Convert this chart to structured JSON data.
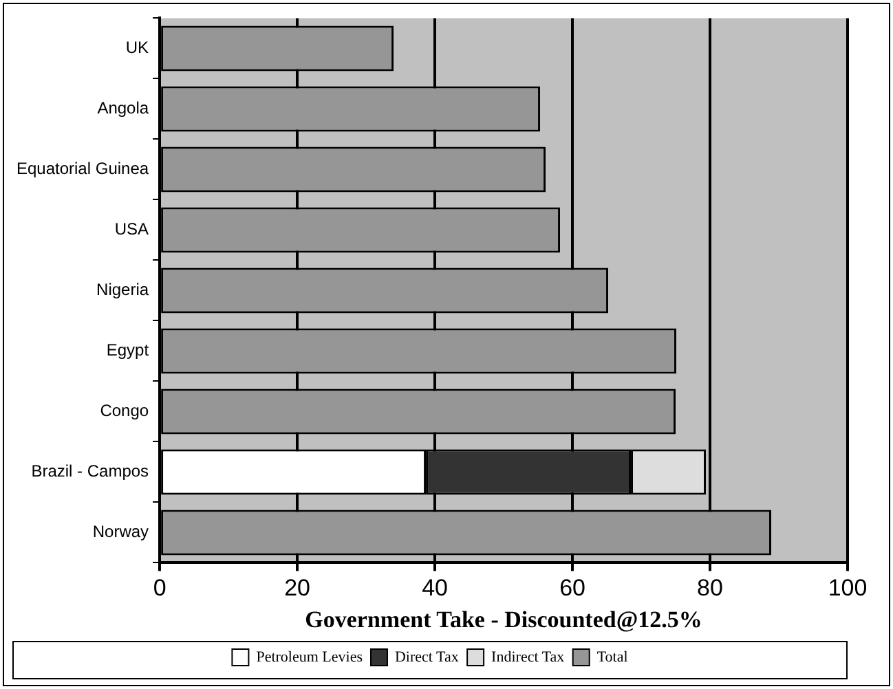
{
  "chart_data": {
    "type": "bar",
    "orientation": "horizontal",
    "stacked": true,
    "xlabel": "Government Take - Discounted@12.5%",
    "categories": [
      "UK",
      "Angola",
      "Equatorial Guinea",
      "USA",
      "Nigeria",
      "Egypt",
      "Congo",
      "Brazil - Campos",
      "Norway"
    ],
    "series": [
      {
        "name": "Petroleum Levies",
        "color": "#ffffff",
        "values": [
          null,
          null,
          null,
          null,
          null,
          null,
          null,
          38.7,
          null
        ]
      },
      {
        "name": "Direct Tax",
        "color": "#333333",
        "values": [
          null,
          null,
          null,
          null,
          null,
          null,
          null,
          29.8,
          null
        ]
      },
      {
        "name": "Indirect Tax",
        "color": "#dddddd",
        "values": [
          null,
          null,
          null,
          null,
          null,
          null,
          null,
          10.9,
          null
        ]
      },
      {
        "name": "Total",
        "color": "#969696",
        "values": [
          34,
          55.3,
          56.1,
          58.2,
          65.2,
          75.1,
          75,
          null,
          88.9
        ]
      }
    ],
    "xlim": [
      0,
      100
    ],
    "xticks": [
      0,
      20,
      40,
      60,
      80,
      100
    ],
    "grid": "x",
    "legend": "bottom"
  }
}
